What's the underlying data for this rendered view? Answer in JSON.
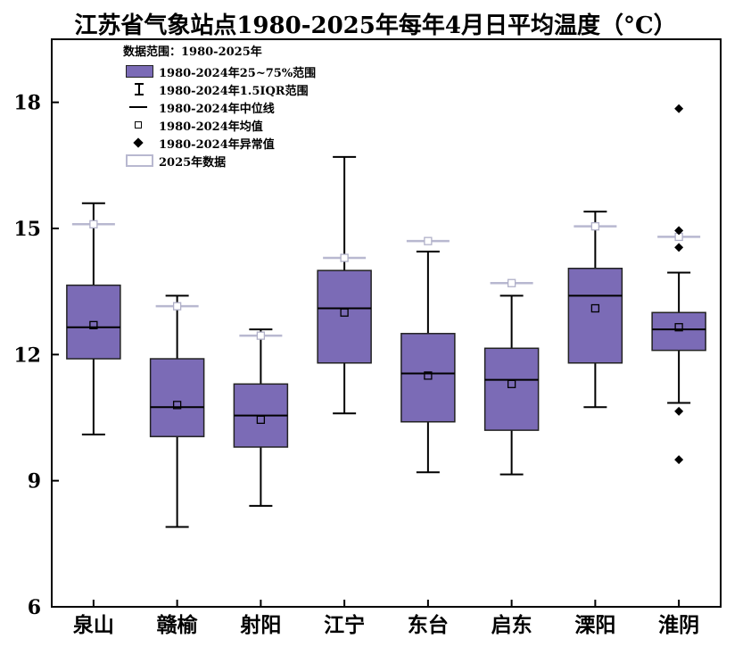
{
  "chart_data": {
    "type": "boxplot",
    "title": "江苏省气象站点1980-2025年每年4月日平均温度（°C）",
    "xlabel": "",
    "ylabel": "",
    "ylim": [
      6,
      19.5
    ],
    "yticks": [
      6,
      9,
      12,
      15,
      18
    ],
    "grid": false,
    "legend_position": "top-left",
    "categories": [
      "泉山",
      "赣榆",
      "射阳",
      "江宁",
      "东台",
      "启东",
      "溧阳",
      "淮阴"
    ],
    "series": [
      {
        "name": "1980-2024",
        "stats": [
          {
            "whisker_low": 10.1,
            "q1": 11.9,
            "median": 12.65,
            "q3": 13.65,
            "whisker_high": 15.6,
            "mean": 12.7,
            "outliers": []
          },
          {
            "whisker_low": 7.9,
            "q1": 10.05,
            "median": 10.75,
            "q3": 11.9,
            "whisker_high": 13.4,
            "mean": 10.8,
            "outliers": []
          },
          {
            "whisker_low": 8.4,
            "q1": 9.8,
            "median": 10.55,
            "q3": 11.3,
            "whisker_high": 12.6,
            "mean": 10.45,
            "outliers": []
          },
          {
            "whisker_low": 10.6,
            "q1": 11.8,
            "median": 13.1,
            "q3": 14.0,
            "whisker_high": 16.7,
            "mean": 13.0,
            "outliers": []
          },
          {
            "whisker_low": 9.2,
            "q1": 10.4,
            "median": 11.55,
            "q3": 12.5,
            "whisker_high": 14.45,
            "mean": 11.5,
            "outliers": []
          },
          {
            "whisker_low": 9.15,
            "q1": 10.2,
            "median": 11.4,
            "q3": 12.15,
            "whisker_high": 13.4,
            "mean": 11.3,
            "outliers": []
          },
          {
            "whisker_low": 10.75,
            "q1": 11.8,
            "median": 13.4,
            "q3": 14.05,
            "whisker_high": 15.4,
            "mean": 13.1,
            "outliers": []
          },
          {
            "whisker_low": 10.85,
            "q1": 12.1,
            "median": 12.6,
            "q3": 13.0,
            "whisker_high": 13.95,
            "mean": 12.65,
            "outliers": [
              17.85,
              14.95,
              14.55,
              10.65,
              9.5
            ]
          }
        ]
      },
      {
        "name": "2025",
        "values": [
          15.1,
          13.15,
          12.45,
          14.3,
          14.7,
          13.7,
          15.05,
          14.8
        ]
      }
    ],
    "colors": {
      "box_fill": "#7b6bb6",
      "box_edge": "#222222",
      "marker_2025": "#b8b8d0",
      "mean_2025": "#b0b0c8",
      "axis": "#000000"
    }
  },
  "legend": {
    "header": "数据范围：1980-2025年",
    "items": [
      {
        "icon": "box-swatch",
        "label": "1980-2024年25~75%范围"
      },
      {
        "icon": "whisker-swatch",
        "label": "1980-2024年1.5IQR范围"
      },
      {
        "icon": "median-swatch",
        "label": "1980-2024年中位线"
      },
      {
        "icon": "mean-square",
        "label": "1980-2024年均值"
      },
      {
        "icon": "outlier-diamond",
        "label": "1980-2024年异常值"
      },
      {
        "icon": "2025-swatch",
        "label": "2025年数据"
      }
    ]
  }
}
